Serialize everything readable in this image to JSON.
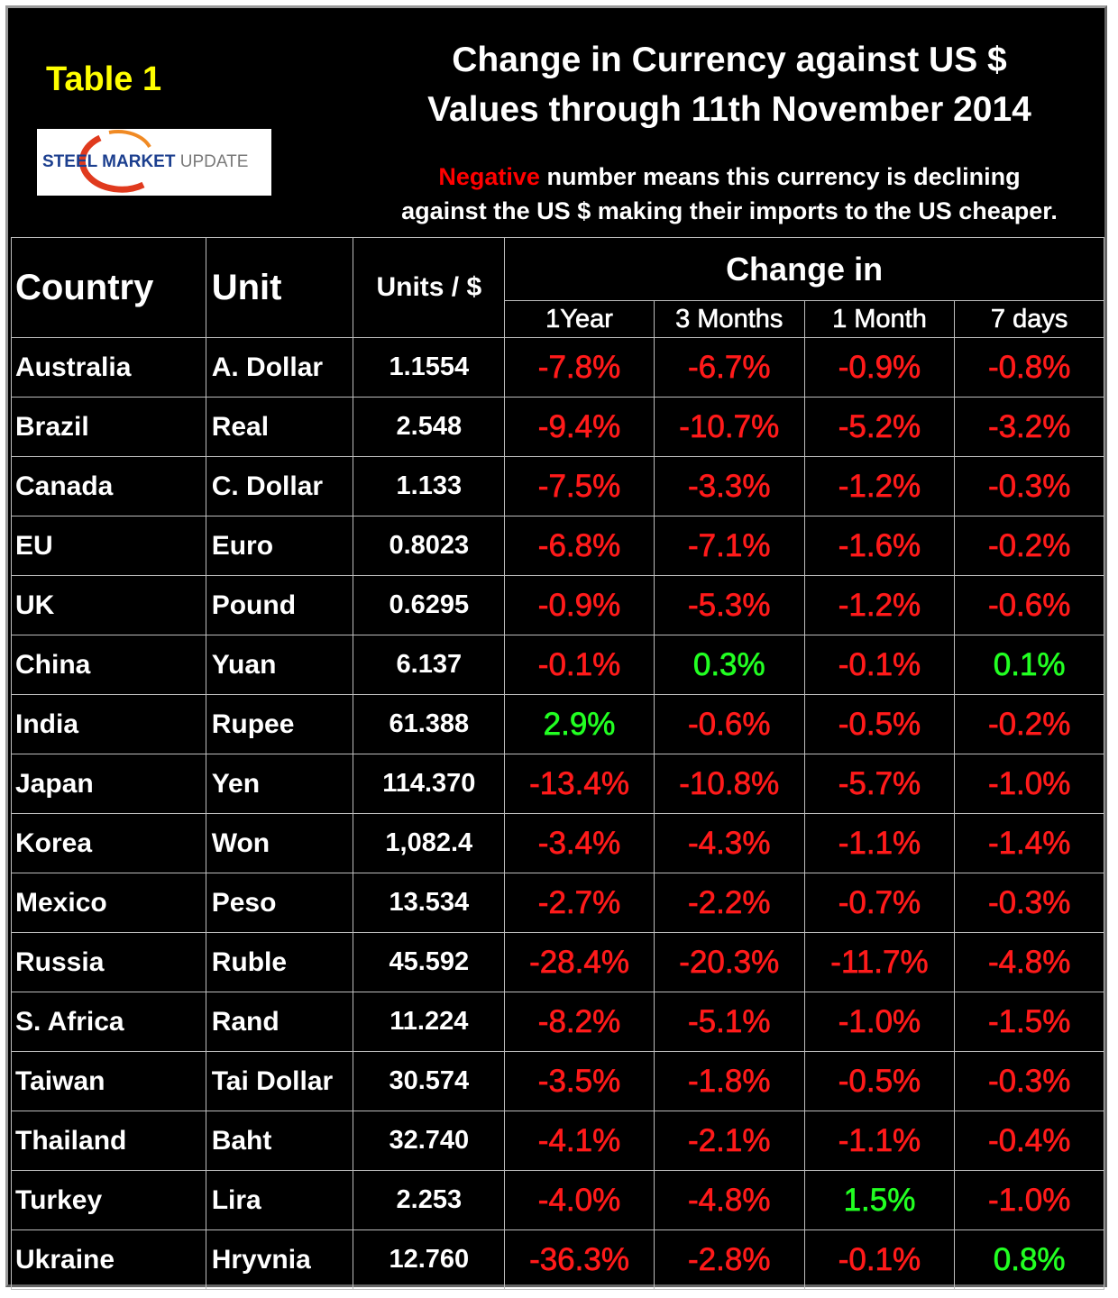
{
  "header": {
    "table_label": "Table 1",
    "logo": {
      "steel": "STEEL",
      "market": "MARKET",
      "update": "UPDATE"
    },
    "title": [
      "Change in Currency against US $",
      "Values through 11th November 2014"
    ],
    "note": {
      "highlight": "Negative",
      "line1": "number means this currency is declining",
      "line2": "against the US $ making their imports to the US cheaper."
    }
  },
  "table": {
    "columns": [
      "Country",
      "Unit",
      "Units / $"
    ],
    "group": "Change in",
    "subcolumns": [
      "1Year",
      "3 Months",
      "1 Month",
      "7 days"
    ],
    "rows": [
      [
        "Australia",
        "A. Dollar",
        "1.1554",
        "-7.8%",
        "-6.7%",
        "-0.9%",
        "-0.8%"
      ],
      [
        "Brazil",
        "Real",
        "2.548",
        "-9.4%",
        "-10.7%",
        "-5.2%",
        "-3.2%"
      ],
      [
        "Canada",
        "C. Dollar",
        "1.133",
        "-7.5%",
        "-3.3%",
        "-1.2%",
        "-0.3%"
      ],
      [
        "EU",
        "Euro",
        "0.8023",
        "-6.8%",
        "-7.1%",
        "-1.6%",
        "-0.2%"
      ],
      [
        "UK",
        "Pound",
        "0.6295",
        "-0.9%",
        "-5.3%",
        "-1.2%",
        "-0.6%"
      ],
      [
        "China",
        "Yuan",
        "6.137",
        "-0.1%",
        "0.3%",
        "-0.1%",
        "0.1%"
      ],
      [
        "India",
        "Rupee",
        "61.388",
        "2.9%",
        "-0.6%",
        "-0.5%",
        "-0.2%"
      ],
      [
        "Japan",
        "Yen",
        "114.370",
        "-13.4%",
        "-10.8%",
        "-5.7%",
        "-1.0%"
      ],
      [
        "Korea",
        "Won",
        "1,082.4",
        "-3.4%",
        "-4.3%",
        "-1.1%",
        "-1.4%"
      ],
      [
        "Mexico",
        "Peso",
        "13.534",
        "-2.7%",
        "-2.2%",
        "-0.7%",
        "-0.3%"
      ],
      [
        "Russia",
        "Ruble",
        "45.592",
        "-28.4%",
        "-20.3%",
        "-11.7%",
        "-4.8%"
      ],
      [
        "S. Africa",
        "Rand",
        "11.224",
        "-8.2%",
        "-5.1%",
        "-1.0%",
        "-1.5%"
      ],
      [
        "Taiwan",
        "Tai Dollar",
        "30.574",
        "-3.5%",
        "-1.8%",
        "-0.5%",
        "-0.3%"
      ],
      [
        "Thailand",
        "Baht",
        "32.740",
        "-4.1%",
        "-2.1%",
        "-1.1%",
        "-0.4%"
      ],
      [
        "Turkey",
        "Lira",
        "2.253",
        "-4.0%",
        "-4.8%",
        "1.5%",
        "-1.0%"
      ],
      [
        "Ukraine",
        "Hryvnia",
        "12.760",
        "-36.3%",
        "-2.8%",
        "-0.1%",
        "0.8%"
      ]
    ]
  }
}
